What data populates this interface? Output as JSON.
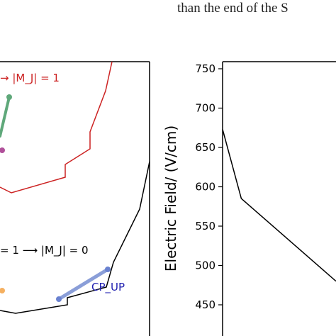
{
  "page": {
    "snippet_text": "than the end of the S"
  },
  "left_panel": {
    "annotation_red": "→ |M_J| = 1",
    "annotation_black": "= 1 ⟶ |M_J| = 0",
    "label_blue": "CP_UP",
    "colors": {
      "red": "#cc2222",
      "green": "#5fa87a",
      "purple": "#b0509a",
      "orange": "#f5b060",
      "blue": "#1f1fb0",
      "blue_line": "#8a9ed8"
    }
  },
  "chart_data": {
    "type": "line",
    "title": "",
    "xlabel": "",
    "ylabel": "Electric Field/ (V/cm)",
    "ylim": [
      420,
      760
    ],
    "yticks": [
      450,
      500,
      550,
      600,
      650,
      700,
      750
    ],
    "x": [
      0.0,
      0.165,
      1.0
    ],
    "series": [
      {
        "values": [
          673,
          585,
          480
        ]
      }
    ],
    "grid": false
  }
}
